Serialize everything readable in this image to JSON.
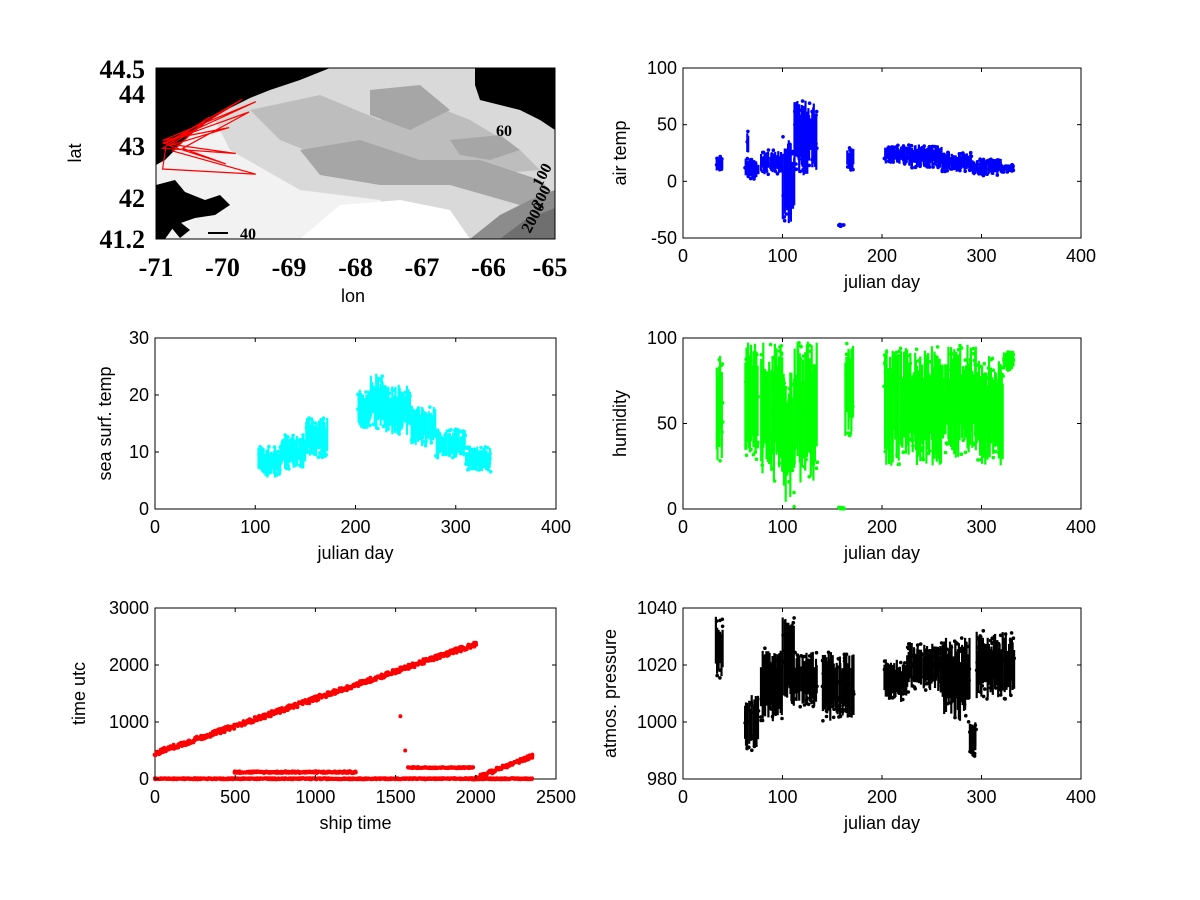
{
  "chart_data": [
    {
      "id": "map",
      "type": "map",
      "xlabel": "lon",
      "ylabel": "lat",
      "xlim": [
        -71,
        -65
      ],
      "ylim": [
        41.2,
        44.5
      ],
      "xticks": [
        "-71",
        "-70",
        "-69",
        "-68",
        "-67",
        "-66",
        "-65"
      ],
      "yticks": [
        "41.2",
        "42",
        "43",
        "44",
        "44.5"
      ],
      "contour_labels": [
        "40",
        "60",
        "100",
        "200",
        "2000"
      ],
      "track_color": "#ff0000",
      "track": [
        {
          "x": -70.8,
          "y": 43.0
        },
        {
          "x": -69.7,
          "y": 43.9
        },
        {
          "x": -70.85,
          "y": 43.05
        },
        {
          "x": -69.5,
          "y": 43.85
        },
        {
          "x": -70.9,
          "y": 43.1
        },
        {
          "x": -69.9,
          "y": 43.35
        },
        {
          "x": -70.8,
          "y": 43.0
        },
        {
          "x": -69.95,
          "y": 42.65
        },
        {
          "x": -70.6,
          "y": 42.95
        },
        {
          "x": -69.6,
          "y": 43.65
        },
        {
          "x": -70.9,
          "y": 43.05
        },
        {
          "x": -69.8,
          "y": 42.85
        },
        {
          "x": -70.9,
          "y": 42.95
        },
        {
          "x": -70.2,
          "y": 43.55
        },
        {
          "x": -70.75,
          "y": 42.9
        },
        {
          "x": -69.5,
          "y": 42.45
        },
        {
          "x": -70.9,
          "y": 42.55
        },
        {
          "x": -70.85,
          "y": 43.0
        }
      ]
    },
    {
      "id": "airtemp",
      "type": "scatter",
      "xlabel": "julian day",
      "ylabel": "air temp",
      "xlim": [
        0,
        400
      ],
      "ylim": [
        -50,
        100
      ],
      "xticks": [
        0,
        100,
        200,
        300,
        400
      ],
      "yticks": [
        -50,
        0,
        50,
        100
      ],
      "color": "#0000ff",
      "clusters": [
        {
          "x0": 33,
          "x1": 40,
          "ymin": 8,
          "ymax": 22
        },
        {
          "x0": 62,
          "x1": 76,
          "ymin": 2,
          "ymax": 20
        },
        {
          "x0": 64,
          "x1": 66,
          "ymin": 20,
          "ymax": 48
        },
        {
          "x0": 78,
          "x1": 100,
          "ymin": 6,
          "ymax": 28
        },
        {
          "x0": 100,
          "x1": 112,
          "ymin": -38,
          "ymax": 40
        },
        {
          "x0": 112,
          "x1": 125,
          "ymin": 5,
          "ymax": 72
        },
        {
          "x0": 125,
          "x1": 135,
          "ymin": 10,
          "ymax": 74
        },
        {
          "x0": 156,
          "x1": 162,
          "ymin": -40,
          "ymax": -38
        },
        {
          "x0": 165,
          "x1": 172,
          "ymin": 10,
          "ymax": 30
        },
        {
          "x0": 202,
          "x1": 230,
          "ymin": 15,
          "ymax": 32
        },
        {
          "x0": 230,
          "x1": 260,
          "ymin": 12,
          "ymax": 33
        },
        {
          "x0": 260,
          "x1": 290,
          "ymin": 8,
          "ymax": 26
        },
        {
          "x0": 290,
          "x1": 320,
          "ymin": 5,
          "ymax": 20
        },
        {
          "x0": 320,
          "x1": 333,
          "ymin": 8,
          "ymax": 15
        }
      ]
    },
    {
      "id": "sst",
      "type": "scatter",
      "xlabel": "julian day",
      "ylabel": "sea surf. temp",
      "xlim": [
        0,
        400
      ],
      "ylim": [
        0,
        30
      ],
      "xticks": [
        0,
        100,
        200,
        300,
        400
      ],
      "yticks": [
        0,
        10,
        20,
        30
      ],
      "color": "#00ffff",
      "clusters": [
        {
          "x0": 103,
          "x1": 125,
          "ymin": 5.5,
          "ymax": 11
        },
        {
          "x0": 125,
          "x1": 150,
          "ymin": 7,
          "ymax": 13
        },
        {
          "x0": 150,
          "x1": 172,
          "ymin": 9,
          "ymax": 16
        },
        {
          "x0": 202,
          "x1": 215,
          "ymin": 14,
          "ymax": 21
        },
        {
          "x0": 215,
          "x1": 230,
          "ymin": 14,
          "ymax": 24
        },
        {
          "x0": 230,
          "x1": 255,
          "ymin": 13,
          "ymax": 22
        },
        {
          "x0": 255,
          "x1": 280,
          "ymin": 11,
          "ymax": 18
        },
        {
          "x0": 280,
          "x1": 310,
          "ymin": 9,
          "ymax": 14
        },
        {
          "x0": 310,
          "x1": 335,
          "ymin": 6.5,
          "ymax": 11
        }
      ]
    },
    {
      "id": "humidity",
      "type": "scatter",
      "xlabel": "julian day",
      "ylabel": "humidity",
      "xlim": [
        0,
        400
      ],
      "ylim": [
        0,
        100
      ],
      "xticks": [
        0,
        100,
        200,
        300,
        400
      ],
      "yticks": [
        0,
        50,
        100
      ],
      "color": "#00ff00",
      "clusters": [
        {
          "x0": 33,
          "x1": 40,
          "ymin": 28,
          "ymax": 95
        },
        {
          "x0": 62,
          "x1": 76,
          "ymin": 25,
          "ymax": 98
        },
        {
          "x0": 78,
          "x1": 100,
          "ymin": 15,
          "ymax": 98
        },
        {
          "x0": 100,
          "x1": 112,
          "ymin": 1,
          "ymax": 80
        },
        {
          "x0": 112,
          "x1": 135,
          "ymin": 15,
          "ymax": 98
        },
        {
          "x0": 156,
          "x1": 162,
          "ymin": 0,
          "ymax": 1
        },
        {
          "x0": 163,
          "x1": 172,
          "ymin": 40,
          "ymax": 97
        },
        {
          "x0": 202,
          "x1": 230,
          "ymin": 25,
          "ymax": 96
        },
        {
          "x0": 230,
          "x1": 260,
          "ymin": 25,
          "ymax": 97
        },
        {
          "x0": 260,
          "x1": 295,
          "ymin": 30,
          "ymax": 96
        },
        {
          "x0": 295,
          "x1": 322,
          "ymin": 25,
          "ymax": 90
        },
        {
          "x0": 322,
          "x1": 333,
          "ymin": 80,
          "ymax": 92
        }
      ]
    },
    {
      "id": "timeutc",
      "type": "scatter",
      "xlabel": "ship time",
      "ylabel": "time utc",
      "xlim": [
        0,
        2500
      ],
      "ylim": [
        0,
        3000
      ],
      "xticks": [
        0,
        500,
        1000,
        1500,
        2000,
        2500
      ],
      "yticks": [
        0,
        1000,
        2000,
        3000
      ],
      "color": "#ff0000",
      "bands": [
        {
          "x0": 0,
          "x1": 2000,
          "y0": 450,
          "y1": 2370,
          "spread": 80
        },
        {
          "x0": 1980,
          "x1": 2350,
          "y0": 0,
          "y1": 400,
          "spread": 60
        },
        {
          "x0": 0,
          "x1": 2350,
          "y0": 5,
          "y1": 5,
          "spread": 20
        },
        {
          "x0": 500,
          "x1": 1250,
          "y0": 120,
          "y1": 120,
          "spread": 30
        },
        {
          "x0": 1580,
          "x1": 1980,
          "y0": 200,
          "y1": 200,
          "spread": 20
        }
      ],
      "points": [
        {
          "x": 1530,
          "y": 1100
        },
        {
          "x": 1560,
          "y": 500
        }
      ]
    },
    {
      "id": "pressure",
      "type": "scatter",
      "xlabel": "julian day",
      "ylabel": "atmos. pressure",
      "xlim": [
        0,
        400
      ],
      "ylim": [
        980,
        1040
      ],
      "xticks": [
        0,
        100,
        200,
        300,
        400
      ],
      "yticks": [
        980,
        1000,
        1020,
        1040
      ],
      "color": "#000000",
      "clusters": [
        {
          "x0": 33,
          "x1": 40,
          "ymin": 1015,
          "ymax": 1037
        },
        {
          "x0": 62,
          "x1": 76,
          "ymin": 990,
          "ymax": 1010
        },
        {
          "x0": 78,
          "x1": 100,
          "ymin": 1000,
          "ymax": 1026
        },
        {
          "x0": 100,
          "x1": 112,
          "ymin": 1003,
          "ymax": 1037
        },
        {
          "x0": 112,
          "x1": 135,
          "ymin": 1005,
          "ymax": 1025
        },
        {
          "x0": 140,
          "x1": 172,
          "ymin": 1000,
          "ymax": 1025
        },
        {
          "x0": 202,
          "x1": 225,
          "ymin": 1007,
          "ymax": 1022
        },
        {
          "x0": 225,
          "x1": 260,
          "ymin": 1010,
          "ymax": 1028
        },
        {
          "x0": 260,
          "x1": 288,
          "ymin": 1000,
          "ymax": 1030
        },
        {
          "x0": 288,
          "x1": 295,
          "ymin": 988,
          "ymax": 1000
        },
        {
          "x0": 295,
          "x1": 333,
          "ymin": 1008,
          "ymax": 1032
        }
      ]
    }
  ]
}
